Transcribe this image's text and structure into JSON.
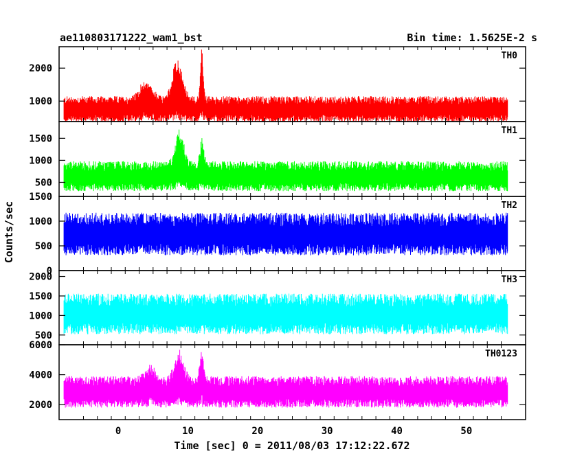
{
  "chart_data": {
    "type": "line",
    "title": "ae110803171222_wam1_bst",
    "bin_time_label": "Bin time: 1.5625E-2 s",
    "xlabel": "Time [sec] 0 = 2011/08/03 17:12:22.672",
    "ylabel": "Counts/sec",
    "xlim": [
      -8.5,
      58.5
    ],
    "data_x_range": [
      -7.8,
      55.9
    ],
    "x_ticks": [
      0,
      10,
      20,
      30,
      40,
      50
    ],
    "panels": [
      {
        "name": "TH0",
        "color": "#ff0000",
        "ylim": [
          380,
          2650
        ],
        "y_ticks": [
          1000,
          2000
        ],
        "baseline": 760,
        "noise_halfwidth": 390,
        "features": [
          {
            "t": 8.5,
            "peak": 2350,
            "width": 1.0
          },
          {
            "t": 12.0,
            "peak": 2650,
            "width": 0.3
          },
          {
            "t": 4.0,
            "peak": 1700,
            "width": 1.2
          }
        ]
      },
      {
        "name": "TH1",
        "color": "#00ff00",
        "ylim": [
          180,
          1880
        ],
        "y_ticks": [
          500,
          1000,
          1500
        ],
        "baseline": 640,
        "noise_halfwidth": 340,
        "features": [
          {
            "t": 8.8,
            "peak": 1880,
            "width": 0.8
          },
          {
            "t": 12.0,
            "peak": 1620,
            "width": 0.4
          }
        ]
      },
      {
        "name": "TH2",
        "color": "#0000ff",
        "ylim": [
          0,
          1500
        ],
        "y_ticks": [
          0,
          500,
          1000,
          1500
        ],
        "baseline": 740,
        "noise_halfwidth": 430,
        "features": []
      },
      {
        "name": "TH3",
        "color": "#00ffff",
        "ylim": [
          250,
          2150
        ],
        "y_ticks": [
          500,
          1000,
          1500,
          2000
        ],
        "baseline": 1040,
        "noise_halfwidth": 520,
        "features": []
      },
      {
        "name": "TH0123",
        "color": "#ff00ff",
        "ylim": [
          1000,
          6000
        ],
        "y_ticks": [
          2000,
          4000,
          6000
        ],
        "baseline": 2850,
        "noise_halfwidth": 1050,
        "features": [
          {
            "t": 8.7,
            "peak": 5800,
            "width": 0.9
          },
          {
            "t": 12.0,
            "peak": 6000,
            "width": 0.4
          },
          {
            "t": 4.5,
            "peak": 4900,
            "width": 1.0
          }
        ]
      }
    ]
  }
}
